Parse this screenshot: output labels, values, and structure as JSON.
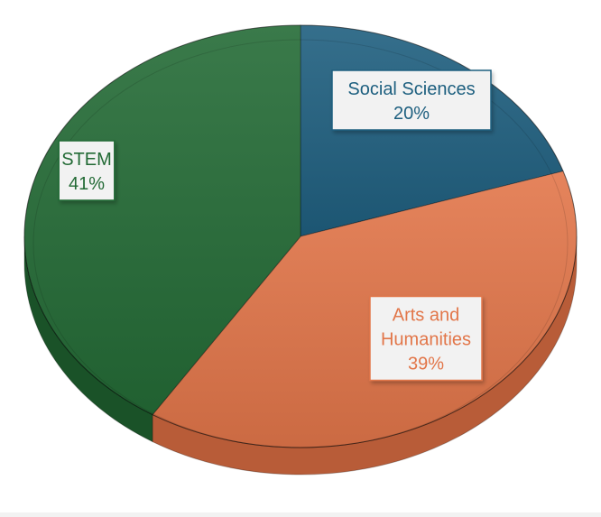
{
  "chart_data": {
    "type": "pie",
    "style": "3d",
    "title": "",
    "slices": [
      {
        "label": "Social Sciences",
        "value": 20,
        "value_label": "20%",
        "color": "#1f5f7f",
        "side_color": "#164861"
      },
      {
        "label": "Arts and Humanities",
        "value": 39,
        "value_label": "39%",
        "color": "#e2764a",
        "side_color": "#b85c38"
      },
      {
        "label": "STEM",
        "value": 41,
        "value_label": "41%",
        "color": "#246b36",
        "side_color": "#1a5228"
      }
    ],
    "start_angle_deg": 0,
    "direction": "clockwise",
    "legend": "none",
    "label_box": {
      "background": "#f2f2f2",
      "text_color_by_slice": true
    }
  }
}
